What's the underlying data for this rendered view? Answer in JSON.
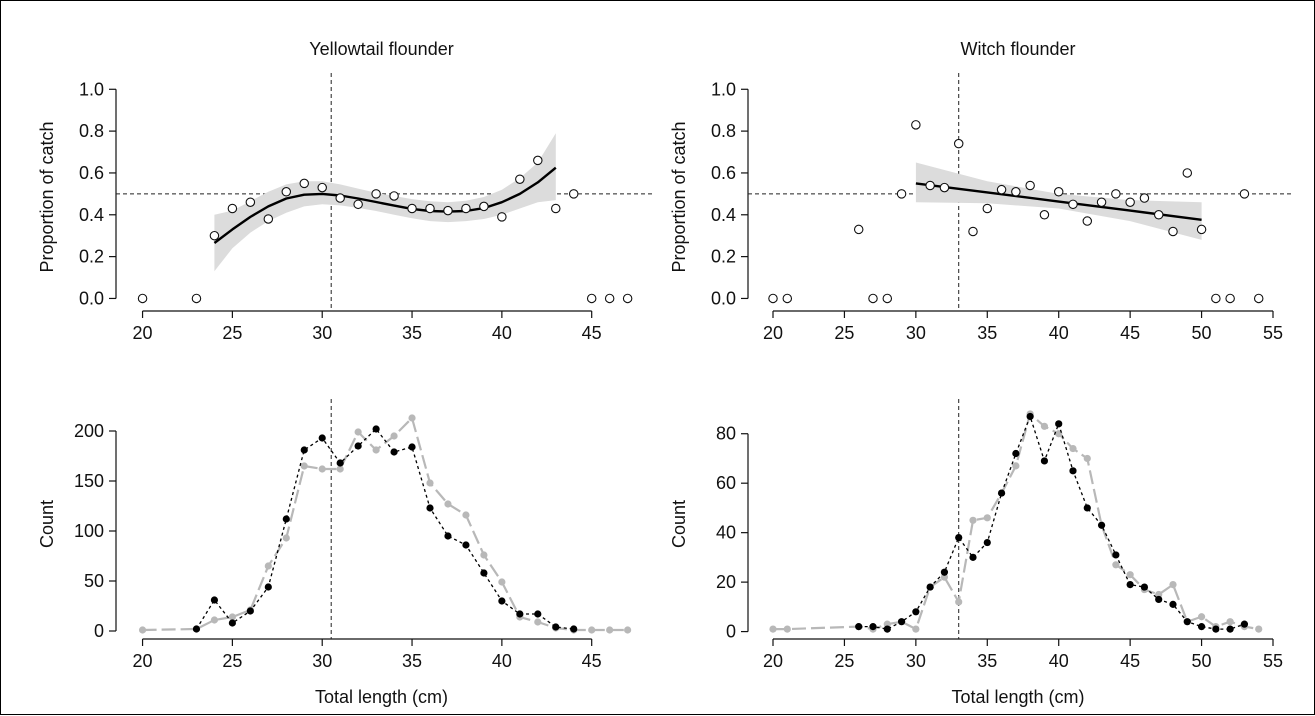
{
  "chart_data": [
    {
      "id": "yellowtail-proportion",
      "type": "scatter",
      "title": "Yellowtail flounder",
      "xlabel": "",
      "ylabel": "Proportion of catch",
      "xlim": [
        18.8,
        47.8
      ],
      "ylim": [
        -0.06,
        1.03
      ],
      "xticks": [
        20,
        25,
        30,
        35,
        40,
        45
      ],
      "yticks": [
        "0.0",
        "0.2",
        "0.4",
        "0.6",
        "0.8",
        "1.0"
      ],
      "vline": 30.5,
      "hline": 0.5,
      "points": {
        "x": [
          20,
          23,
          24,
          25,
          26,
          27,
          28,
          29,
          30,
          31,
          32,
          33,
          34,
          35,
          36,
          37,
          38,
          39,
          40,
          41,
          42,
          43,
          44,
          45,
          46,
          47
        ],
        "y": [
          0.0,
          0.0,
          0.3,
          0.43,
          0.46,
          0.38,
          0.51,
          0.55,
          0.53,
          0.48,
          0.45,
          0.5,
          0.49,
          0.43,
          0.43,
          0.42,
          0.43,
          0.44,
          0.39,
          0.57,
          0.66,
          0.43,
          0.5,
          0.0,
          0.0,
          0.0
        ]
      },
      "fit": {
        "x": [
          24,
          25,
          26,
          27,
          28,
          29,
          30,
          31,
          32,
          33,
          34,
          35,
          36,
          37,
          38,
          39,
          40,
          41,
          42,
          43
        ],
        "y": [
          0.265,
          0.33,
          0.39,
          0.44,
          0.478,
          0.496,
          0.5,
          0.492,
          0.478,
          0.461,
          0.444,
          0.428,
          0.418,
          0.415,
          0.418,
          0.432,
          0.46,
          0.5,
          0.555,
          0.625
        ],
        "lower": [
          0.13,
          0.24,
          0.315,
          0.37,
          0.41,
          0.44,
          0.45,
          0.445,
          0.433,
          0.418,
          0.4,
          0.383,
          0.37,
          0.365,
          0.37,
          0.38,
          0.4,
          0.43,
          0.46,
          0.47
        ],
        "upper": [
          0.4,
          0.42,
          0.465,
          0.51,
          0.545,
          0.56,
          0.56,
          0.545,
          0.525,
          0.505,
          0.49,
          0.475,
          0.465,
          0.46,
          0.467,
          0.485,
          0.52,
          0.575,
          0.65,
          0.79
        ]
      }
    },
    {
      "id": "witch-proportion",
      "type": "scatter",
      "title": "Witch flounder",
      "xlabel": "",
      "ylabel": "Proportion of catch",
      "xlim": [
        18.6,
        55.7
      ],
      "ylim": [
        -0.06,
        1.03
      ],
      "xticks": [
        20,
        25,
        30,
        35,
        40,
        45,
        50,
        55
      ],
      "yticks": [
        "0.0",
        "0.2",
        "0.4",
        "0.6",
        "0.8",
        "1.0"
      ],
      "vline": 33,
      "hline": 0.5,
      "points": {
        "x": [
          20,
          21,
          26,
          27,
          28,
          29,
          30,
          31,
          32,
          33,
          34,
          35,
          36,
          37,
          38,
          39,
          40,
          41,
          42,
          43,
          44,
          45,
          46,
          47,
          48,
          49,
          50,
          51,
          52,
          53,
          54
        ],
        "y": [
          0.0,
          0.0,
          0.33,
          0.0,
          0.0,
          0.5,
          0.83,
          0.54,
          0.53,
          0.74,
          0.32,
          0.43,
          0.52,
          0.51,
          0.54,
          0.4,
          0.51,
          0.45,
          0.37,
          0.46,
          0.5,
          0.46,
          0.48,
          0.4,
          0.32,
          0.6,
          0.33,
          0.0,
          0.0,
          0.5,
          0.0
        ]
      },
      "fit": {
        "x": [
          30,
          35,
          40,
          45,
          50
        ],
        "y": [
          0.55,
          0.507,
          0.463,
          0.42,
          0.376
        ],
        "lower": [
          0.46,
          0.455,
          0.43,
          0.37,
          0.28
        ],
        "upper": [
          0.65,
          0.56,
          0.5,
          0.47,
          0.46
        ]
      }
    },
    {
      "id": "yellowtail-count",
      "type": "line",
      "title": "",
      "xlabel": "Total length (cm)",
      "ylabel": "Count",
      "xlim": [
        18.8,
        47.8
      ],
      "ylim": [
        -8,
        222
      ],
      "xticks": [
        20,
        25,
        30,
        35,
        40,
        45
      ],
      "yticks": [
        "0",
        "50",
        "100",
        "150",
        "200"
      ],
      "vline": 30.5,
      "series": [
        {
          "color": "#b8b8b8",
          "style": "long-dash",
          "x": [
            20,
            23,
            24,
            25,
            26,
            27,
            28,
            29,
            30,
            31,
            32,
            33,
            34,
            35,
            36,
            37,
            38,
            39,
            40,
            41,
            42,
            43,
            44,
            45,
            46,
            47
          ],
          "values": [
            1,
            2,
            11,
            14,
            21,
            65,
            93,
            165,
            162,
            162,
            199,
            181,
            195,
            213,
            148,
            127,
            116,
            76,
            49,
            14,
            9,
            3,
            1,
            1,
            1,
            1
          ]
        },
        {
          "color": "#000000",
          "style": "short-dash",
          "x": [
            23,
            24,
            25,
            26,
            27,
            28,
            29,
            30,
            31,
            32,
            33,
            34,
            35,
            36,
            37,
            38,
            39,
            40,
            41,
            42,
            43,
            44
          ],
          "values": [
            2,
            31,
            8,
            20,
            44,
            112,
            181,
            193,
            168,
            185,
            202,
            179,
            184,
            123,
            95,
            86,
            58,
            30,
            17,
            17,
            4,
            2
          ]
        }
      ]
    },
    {
      "id": "witch-count",
      "type": "line",
      "title": "",
      "xlabel": "Total length (cm)",
      "ylabel": "Count",
      "xlim": [
        18.6,
        55.7
      ],
      "ylim": [
        -3,
        90
      ],
      "xticks": [
        20,
        25,
        30,
        35,
        40,
        45,
        50,
        55
      ],
      "yticks": [
        "0",
        "20",
        "40",
        "60",
        "80"
      ],
      "vline": 33,
      "series": [
        {
          "color": "#b8b8b8",
          "style": "long-dash",
          "x": [
            20,
            21,
            26,
            27,
            28,
            29,
            30,
            31,
            32,
            33,
            34,
            35,
            36,
            37,
            38,
            39,
            40,
            41,
            42,
            43,
            44,
            45,
            46,
            47,
            48,
            49,
            50,
            51,
            52,
            53,
            54
          ],
          "values": [
            1,
            1,
            2,
            1,
            3,
            4,
            1,
            18,
            22,
            12,
            45,
            46,
            56,
            67,
            88,
            83,
            80,
            74,
            70,
            43,
            27,
            23,
            17,
            15,
            19,
            4,
            6,
            2,
            4,
            2,
            1
          ]
        },
        {
          "color": "#000000",
          "style": "short-dash",
          "x": [
            26,
            27,
            28,
            29,
            30,
            31,
            32,
            33,
            34,
            35,
            36,
            37,
            38,
            39,
            40,
            41,
            42,
            43,
            44,
            45,
            46,
            47,
            48,
            49,
            50,
            51,
            52,
            53
          ],
          "values": [
            2,
            2,
            1,
            4,
            8,
            18,
            24,
            38,
            30,
            36,
            56,
            72,
            87,
            69,
            84,
            65,
            50,
            43,
            31,
            19,
            18,
            13,
            11,
            4,
            2,
            1,
            1,
            3
          ]
        }
      ]
    }
  ]
}
